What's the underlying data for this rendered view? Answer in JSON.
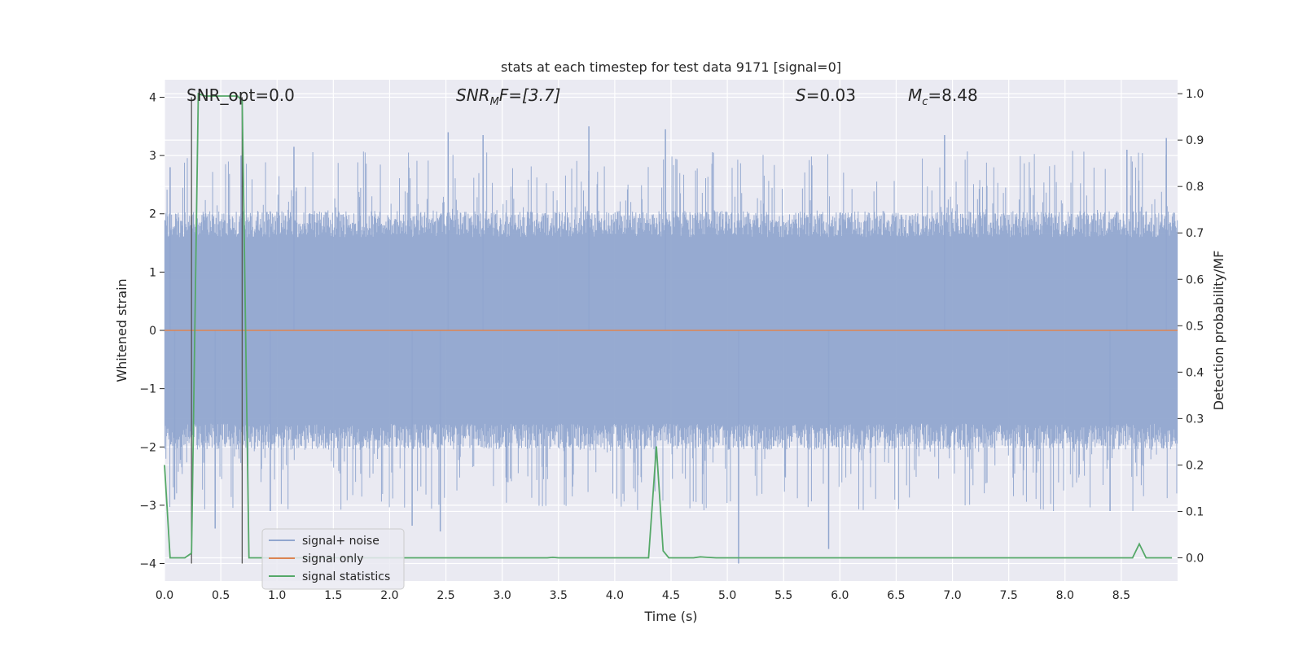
{
  "chart_data": {
    "type": "line",
    "title": "stats at each timestep for test data 9171 [signal=0]",
    "xlabel": "Time (s)",
    "ylabel_left": "Whitened strain",
    "ylabel_right": "Detection probability/MF",
    "xlim": [
      0.0,
      9.0
    ],
    "ylim_left": [
      -4.3,
      4.3
    ],
    "ylim_right": [
      -0.05,
      1.03
    ],
    "x_ticks": [
      "0.0",
      "0.5",
      "1.0",
      "1.5",
      "2.0",
      "2.5",
      "3.0",
      "3.5",
      "4.0",
      "4.5",
      "5.0",
      "5.5",
      "6.0",
      "6.5",
      "7.0",
      "7.5",
      "8.0",
      "8.5"
    ],
    "y_ticks_left": [
      "4",
      "3",
      "2",
      "1",
      "0",
      "−1",
      "−2",
      "−3",
      "−4"
    ],
    "y_ticks_right": [
      "1.0",
      "0.9",
      "0.8",
      "0.7",
      "0.6",
      "0.5",
      "0.4",
      "0.3",
      "0.2",
      "0.1",
      "0.0"
    ],
    "grid": true,
    "legend_position": "lower-left",
    "annotations": {
      "snr_opt": "SNR_opt=0.0",
      "snr_mf_base": "SNR",
      "snr_mf_sub": "M",
      "snr_mf_rest": "F=[3.7]",
      "s_label": "S",
      "s_value": "=0.03",
      "mc_base": "M",
      "mc_sub": "c",
      "mc_value": "=8.48"
    },
    "series": [
      {
        "name": "signal+ noise",
        "color": "#91a6cf",
        "axis": "left",
        "description_stats": {
          "typical_envelope": [
            -1.6,
            1.6
          ],
          "peak_max": 3.5,
          "peak_min": -4.0
        },
        "notable_spikes": [
          {
            "x": 0.05,
            "y": 2.8
          },
          {
            "x": 0.09,
            "y": -2.9
          },
          {
            "x": 0.45,
            "y": -3.4
          },
          {
            "x": 0.68,
            "y": 3.0
          },
          {
            "x": 0.94,
            "y": -3.1
          },
          {
            "x": 1.15,
            "y": 3.15
          },
          {
            "x": 2.2,
            "y": -3.35
          },
          {
            "x": 2.45,
            "y": -3.45
          },
          {
            "x": 2.52,
            "y": 3.4
          },
          {
            "x": 2.83,
            "y": 3.35
          },
          {
            "x": 3.77,
            "y": 3.5
          },
          {
            "x": 4.45,
            "y": 3.45
          },
          {
            "x": 5.1,
            "y": -4.0
          },
          {
            "x": 5.9,
            "y": -3.75
          },
          {
            "x": 6.93,
            "y": 3.35
          },
          {
            "x": 8.4,
            "y": -3.1
          },
          {
            "x": 8.55,
            "y": 3.1
          },
          {
            "x": 8.9,
            "y": 3.3
          }
        ]
      },
      {
        "name": "signal only",
        "color": "#dd8452",
        "axis": "left",
        "values_constant": 0.0
      },
      {
        "name": "signal statistics",
        "color": "#55a868",
        "axis": "right",
        "points": [
          [
            0.0,
            0.2
          ],
          [
            0.05,
            0.0
          ],
          [
            0.18,
            0.0
          ],
          [
            0.24,
            0.01
          ],
          [
            0.3,
            1.0
          ],
          [
            0.36,
            0.995
          ],
          [
            0.5,
            0.995
          ],
          [
            0.65,
            0.995
          ],
          [
            0.69,
            0.985
          ],
          [
            0.75,
            0.0
          ],
          [
            1.5,
            0.0
          ],
          [
            3.4,
            0.0
          ],
          [
            3.45,
            0.001
          ],
          [
            3.5,
            0.0
          ],
          [
            4.0,
            0.0
          ],
          [
            4.3,
            0.0
          ],
          [
            4.37,
            0.24
          ],
          [
            4.43,
            0.015
          ],
          [
            4.48,
            0.0
          ],
          [
            4.7,
            0.0
          ],
          [
            4.76,
            0.002
          ],
          [
            4.82,
            0.001
          ],
          [
            4.9,
            0.0
          ],
          [
            8.6,
            0.0
          ],
          [
            8.66,
            0.03
          ],
          [
            8.72,
            0.0
          ],
          [
            8.95,
            0.0
          ]
        ]
      }
    ],
    "vertical_markers": [
      {
        "x": 0.24,
        "y_from": -4.0,
        "y_to": 4.0,
        "color": "#555555"
      },
      {
        "x": 0.69,
        "y_from": -4.0,
        "y_to": 4.0,
        "color": "#555555"
      }
    ]
  }
}
